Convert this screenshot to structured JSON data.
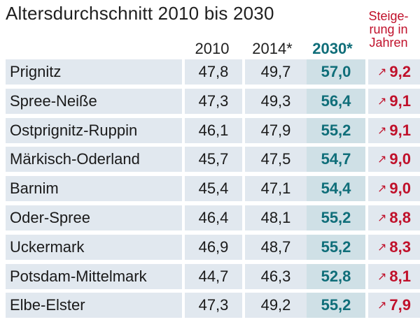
{
  "chart_data": {
    "type": "table",
    "title": "Altersdurchschnitt 2010 bis 2030",
    "columns": [
      "2010",
      "2014*",
      "2030*",
      "Steige-rung in Jahren"
    ],
    "rise_header_lines": [
      "Steige-",
      "rung in",
      "Jahren"
    ],
    "rows": [
      {
        "name": "Prignitz",
        "v2010": "47,8",
        "v2014": "49,7",
        "v2030": "57,0",
        "rise": "9,2"
      },
      {
        "name": "Spree-Neiße",
        "v2010": "47,3",
        "v2014": "49,3",
        "v2030": "56,4",
        "rise": "9,1"
      },
      {
        "name": "Ostprignitz-Ruppin",
        "v2010": "46,1",
        "v2014": "47,9",
        "v2030": "55,2",
        "rise": "9,1"
      },
      {
        "name": "Märkisch-Oderland",
        "v2010": "45,7",
        "v2014": "47,5",
        "v2030": "54,7",
        "rise": "9,0"
      },
      {
        "name": "Barnim",
        "v2010": "45,4",
        "v2014": "47,1",
        "v2030": "54,4",
        "rise": "9,0"
      },
      {
        "name": "Oder-Spree",
        "v2010": "46,4",
        "v2014": "48,1",
        "v2030": "55,2",
        "rise": "8,8"
      },
      {
        "name": "Uckermark",
        "v2010": "46,9",
        "v2014": "48,7",
        "v2030": "55,2",
        "rise": "8,3"
      },
      {
        "name": "Potsdam-Mittelmark",
        "v2010": "44,7",
        "v2014": "46,3",
        "v2030": "52,8",
        "rise": "8,1"
      },
      {
        "name": "Elbe-Elster",
        "v2010": "47,3",
        "v2014": "49,2",
        "v2030": "55,2",
        "rise": "7,9"
      }
    ]
  },
  "icons": {
    "rise_arrow": "↗"
  },
  "colors": {
    "row_bg": "#e1e8ef",
    "accent_2030": "#0f6e79",
    "rise_red": "#c0102a"
  }
}
